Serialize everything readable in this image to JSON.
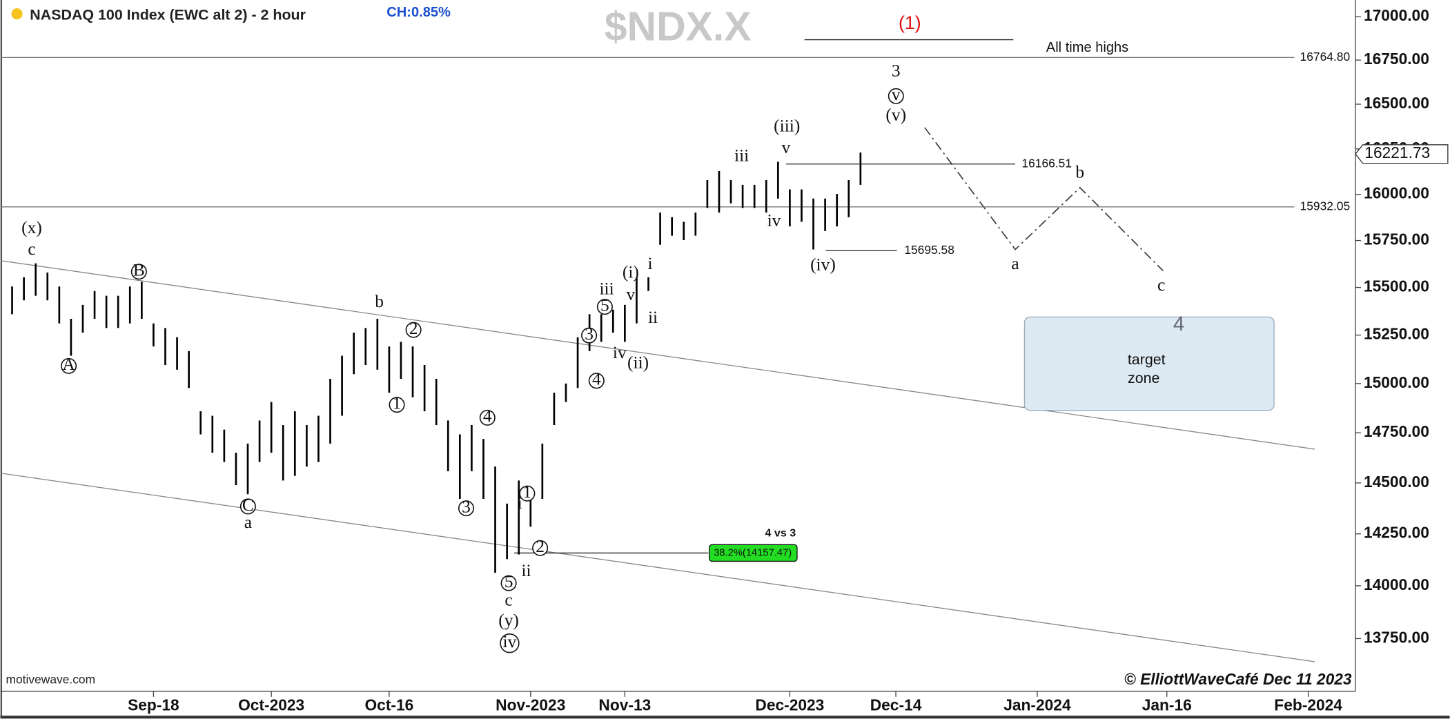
{
  "header": {
    "title": "NASDAQ 100 Index (EWC alt 2) - 2 hour",
    "change": "CH:0.85%",
    "ticker": "$NDX.X",
    "source": "motivewave.com",
    "credit": "© ElliottWaveCafé Dec 11 2023"
  },
  "chart_data": {
    "type": "hilo",
    "x": [
      "2023-08-31",
      "2023-09-01",
      "2023-09-04",
      "2023-09-05",
      "2023-09-06",
      "2023-09-07",
      "2023-09-08",
      "2023-09-11",
      "2023-09-12",
      "2023-09-13",
      "2023-09-14",
      "2023-09-15",
      "2023-09-18",
      "2023-09-19",
      "2023-09-20",
      "2023-09-21",
      "2023-09-22",
      "2023-09-25",
      "2023-09-26",
      "2023-09-27",
      "2023-09-28",
      "2023-09-29",
      "2023-10-02",
      "2023-10-03",
      "2023-10-04",
      "2023-10-05",
      "2023-10-06",
      "2023-10-09",
      "2023-10-10",
      "2023-10-11",
      "2023-10-12",
      "2023-10-13",
      "2023-10-16",
      "2023-10-17",
      "2023-10-18",
      "2023-10-19",
      "2023-10-20",
      "2023-10-23",
      "2023-10-24",
      "2023-10-25",
      "2023-10-26",
      "2023-10-27",
      "2023-10-30",
      "2023-10-31",
      "2023-11-01",
      "2023-11-02",
      "2023-11-03",
      "2023-11-06",
      "2023-11-07",
      "2023-11-08",
      "2023-11-09",
      "2023-11-10",
      "2023-11-13",
      "2023-11-14",
      "2023-11-15",
      "2023-11-16",
      "2023-11-17",
      "2023-11-20",
      "2023-11-21",
      "2023-11-22",
      "2023-11-23",
      "2023-11-24",
      "2023-11-27",
      "2023-11-28",
      "2023-11-29",
      "2023-11-30",
      "2023-12-01",
      "2023-12-04",
      "2023-12-05",
      "2023-12-06",
      "2023-12-07",
      "2023-12-08",
      "2023-12-11"
    ],
    "high": [
      15505,
      15554,
      15628,
      15579,
      15505,
      15335,
      15408,
      15481,
      15456,
      15456,
      15505,
      15530,
      15311,
      15287,
      15239,
      15167,
      14859,
      14836,
      14766,
      14650,
      14696,
      14812,
      14906,
      14789,
      14859,
      14789,
      14836,
      15024,
      15143,
      15263,
      15287,
      15335,
      15191,
      15215,
      15191,
      15095,
      15024,
      14812,
      14742,
      14789,
      14719,
      14581,
      14398,
      14512,
      14467,
      14696,
      14953,
      15000,
      15239,
      15359,
      15359,
      15383,
      15408,
      15554,
      15554,
      15901,
      15876,
      15851,
      15901,
      16078,
      16128,
      16078,
      16052,
      16052,
      16078,
      16179,
      16027,
      16027,
      15977,
      15977,
      16002,
      16078,
      16230
    ],
    "low": [
      15359,
      15432,
      15456,
      15432,
      15311,
      15143,
      15263,
      15335,
      15287,
      15287,
      15311,
      15335,
      15191,
      15095,
      15071,
      14977,
      14742,
      14650,
      14604,
      14489,
      14444,
      14604,
      14650,
      14512,
      14535,
      14581,
      14604,
      14696,
      14836,
      15048,
      15095,
      15071,
      14953,
      15024,
      14930,
      14859,
      14789,
      14558,
      14421,
      14558,
      14421,
      14062,
      14128,
      14150,
      14285,
      14421,
      14789,
      14906,
      14977,
      15167,
      15215,
      15263,
      15215,
      15311,
      15481,
      15727,
      15776,
      15752,
      15776,
      15926,
      15901,
      15951,
      15926,
      15926,
      15901,
      15977,
      15826,
      15851,
      15702,
      15801,
      15826,
      15876,
      16052
    ],
    "color": "#000000",
    "log_y": true,
    "xlim": [
      "2023-08-30",
      "2024-02-07"
    ],
    "xticks": [
      {
        "value": "2023-09-18",
        "label": "Sep-18"
      },
      {
        "value": "2023-10",
        "label": "Oct-2023"
      },
      {
        "value": "2023-10-16",
        "label": "Oct-16"
      },
      {
        "value": "2023-11",
        "label": "Nov-2023"
      },
      {
        "value": "2023-11-13",
        "label": "Nov-13"
      },
      {
        "value": "2023-12",
        "label": "Dec-2023"
      },
      {
        "value": "2023-12-14",
        "label": "Dec-14"
      },
      {
        "value": "2024-01",
        "label": "Jan-2024"
      },
      {
        "value": "2024-01-16",
        "label": "Jan-16"
      },
      {
        "value": "2024-02",
        "label": "Feb-2024"
      }
    ],
    "ylim": [
      13505,
      17097
    ],
    "yticks": [
      {
        "value": 13750,
        "label": "13750.00"
      },
      {
        "value": 14000,
        "label": "14000.00"
      },
      {
        "value": 14250,
        "label": "14250.00"
      },
      {
        "value": 14500,
        "label": "14500.00"
      },
      {
        "value": 14750,
        "label": "14750.00"
      },
      {
        "value": 15000,
        "label": "15000.00"
      },
      {
        "value": 15250,
        "label": "15250.00"
      },
      {
        "value": 15500,
        "label": "15500.00"
      },
      {
        "value": 15750,
        "label": "15750.00"
      },
      {
        "value": 16000,
        "label": "16000.00"
      },
      {
        "value": 16250,
        "label": "16250.00"
      },
      {
        "value": 16500,
        "label": "16500.00"
      },
      {
        "value": 16750,
        "label": "16750.00"
      },
      {
        "value": 17000,
        "label": "17000.00"
      }
    ],
    "last_price": 16221.73,
    "levels": [
      {
        "value": 16764.8,
        "label": "16764.80"
      },
      15932.05,
      16166.51,
      15695.58
    ],
    "retracement": {
      "title": "4 vs 3",
      "value": 14157.47,
      "label": "38.2%(14157.47)",
      "color": "#22dd22"
    },
    "degree_label": "(1)",
    "ath_label": "All time highs",
    "wave_labels": [
      "(x)",
      "c",
      "A",
      "B",
      "C",
      "a",
      "b",
      "2",
      "1",
      "4",
      "3",
      "1",
      "i",
      "2",
      "ii",
      "5",
      "c",
      "(y)",
      "iv",
      "3",
      "4",
      "5",
      "iii",
      "iv",
      "(ii)",
      "(i)",
      "v",
      "i",
      "ii",
      "iii",
      "(iii)",
      "v",
      "iv",
      "(iv)",
      "3",
      "v",
      "(v)"
    ],
    "projection_labels": [
      "a",
      "b",
      "c"
    ],
    "target": {
      "wave": "4",
      "text": [
        "target",
        "zone"
      ]
    }
  }
}
